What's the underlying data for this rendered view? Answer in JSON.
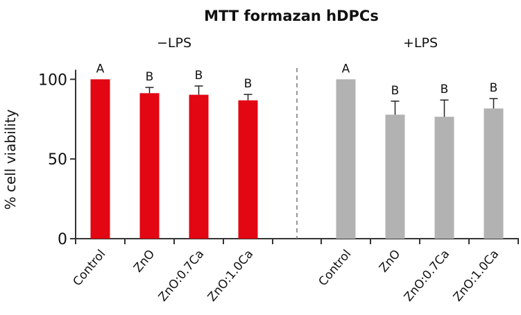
{
  "chart_data": {
    "type": "bar",
    "title": "MTT formazan hDPCs",
    "ylabel": "% cell viability",
    "xlabel": "",
    "ylim": [
      0,
      106
    ],
    "yticks": [
      0,
      50,
      100
    ],
    "grid": false,
    "categories": [
      "Control",
      "ZnO",
      "ZnO:0.7Ca",
      "ZnO:1.0Ca"
    ],
    "groups": [
      {
        "name": "−LPS",
        "color": "#e30613",
        "values": [
          100,
          91.3,
          90.3,
          86.8
        ],
        "errors": [
          0,
          3.6,
          5.5,
          3.7
        ],
        "letters": [
          "A",
          "B",
          "B",
          "B"
        ]
      },
      {
        "name": "+LPS",
        "color": "#b2b2b2",
        "values": [
          100,
          77.8,
          76.5,
          81.7
        ],
        "errors": [
          0,
          8.5,
          10.5,
          6.2
        ],
        "letters": [
          "A",
          "B",
          "B",
          "B"
        ]
      }
    ]
  }
}
